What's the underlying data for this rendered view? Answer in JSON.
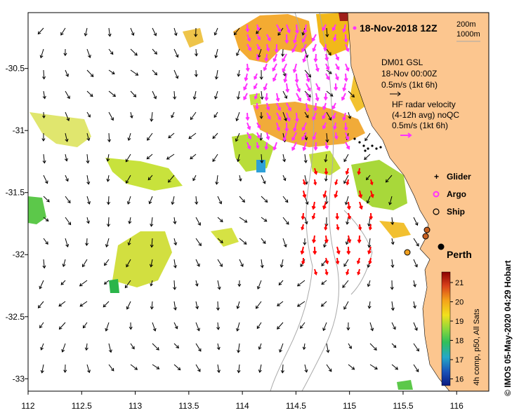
{
  "title": "18-Nov-2018 12Z",
  "depth_legend": [
    "200m",
    "1000m"
  ],
  "model_info": {
    "line1": "DM01 GSL",
    "line2": "18-Nov 00:00Z",
    "line3": "0.5m/s (1kt 6h)"
  },
  "radar_info": {
    "line1": "HF radar velocity",
    "line2": "(4-12h avg) noQC",
    "line3": "0.5m/s (1kt 6h)"
  },
  "legend": {
    "glider": "Glider",
    "argo": "Argo",
    "ship": "Ship"
  },
  "city_label": "Perth",
  "colorbar": {
    "caption": "4h comp, p50, All Sats",
    "ticks": [
      "21",
      "20",
      "19",
      "18",
      "17",
      "16"
    ]
  },
  "credit": "© IMOS 05-May-2020 04:29 Hobart",
  "axes": {
    "x_ticks": [
      "112",
      "112.5",
      "113",
      "113.5",
      "114",
      "114.5",
      "115",
      "115.5",
      "116"
    ],
    "y_ticks": [
      "-30.5",
      "-31",
      "-31.5",
      "-32",
      "-32.5",
      "-33"
    ],
    "lon_range": [
      112,
      116.3
    ],
    "lat_range": [
      -30.05,
      -33.1
    ]
  },
  "colors": {
    "land": "#fcc68f",
    "model_arrows": "#000000",
    "radar_arrows": "#ff33ff",
    "ship_track": "#ff0000",
    "perth_marker": "#000000"
  }
}
